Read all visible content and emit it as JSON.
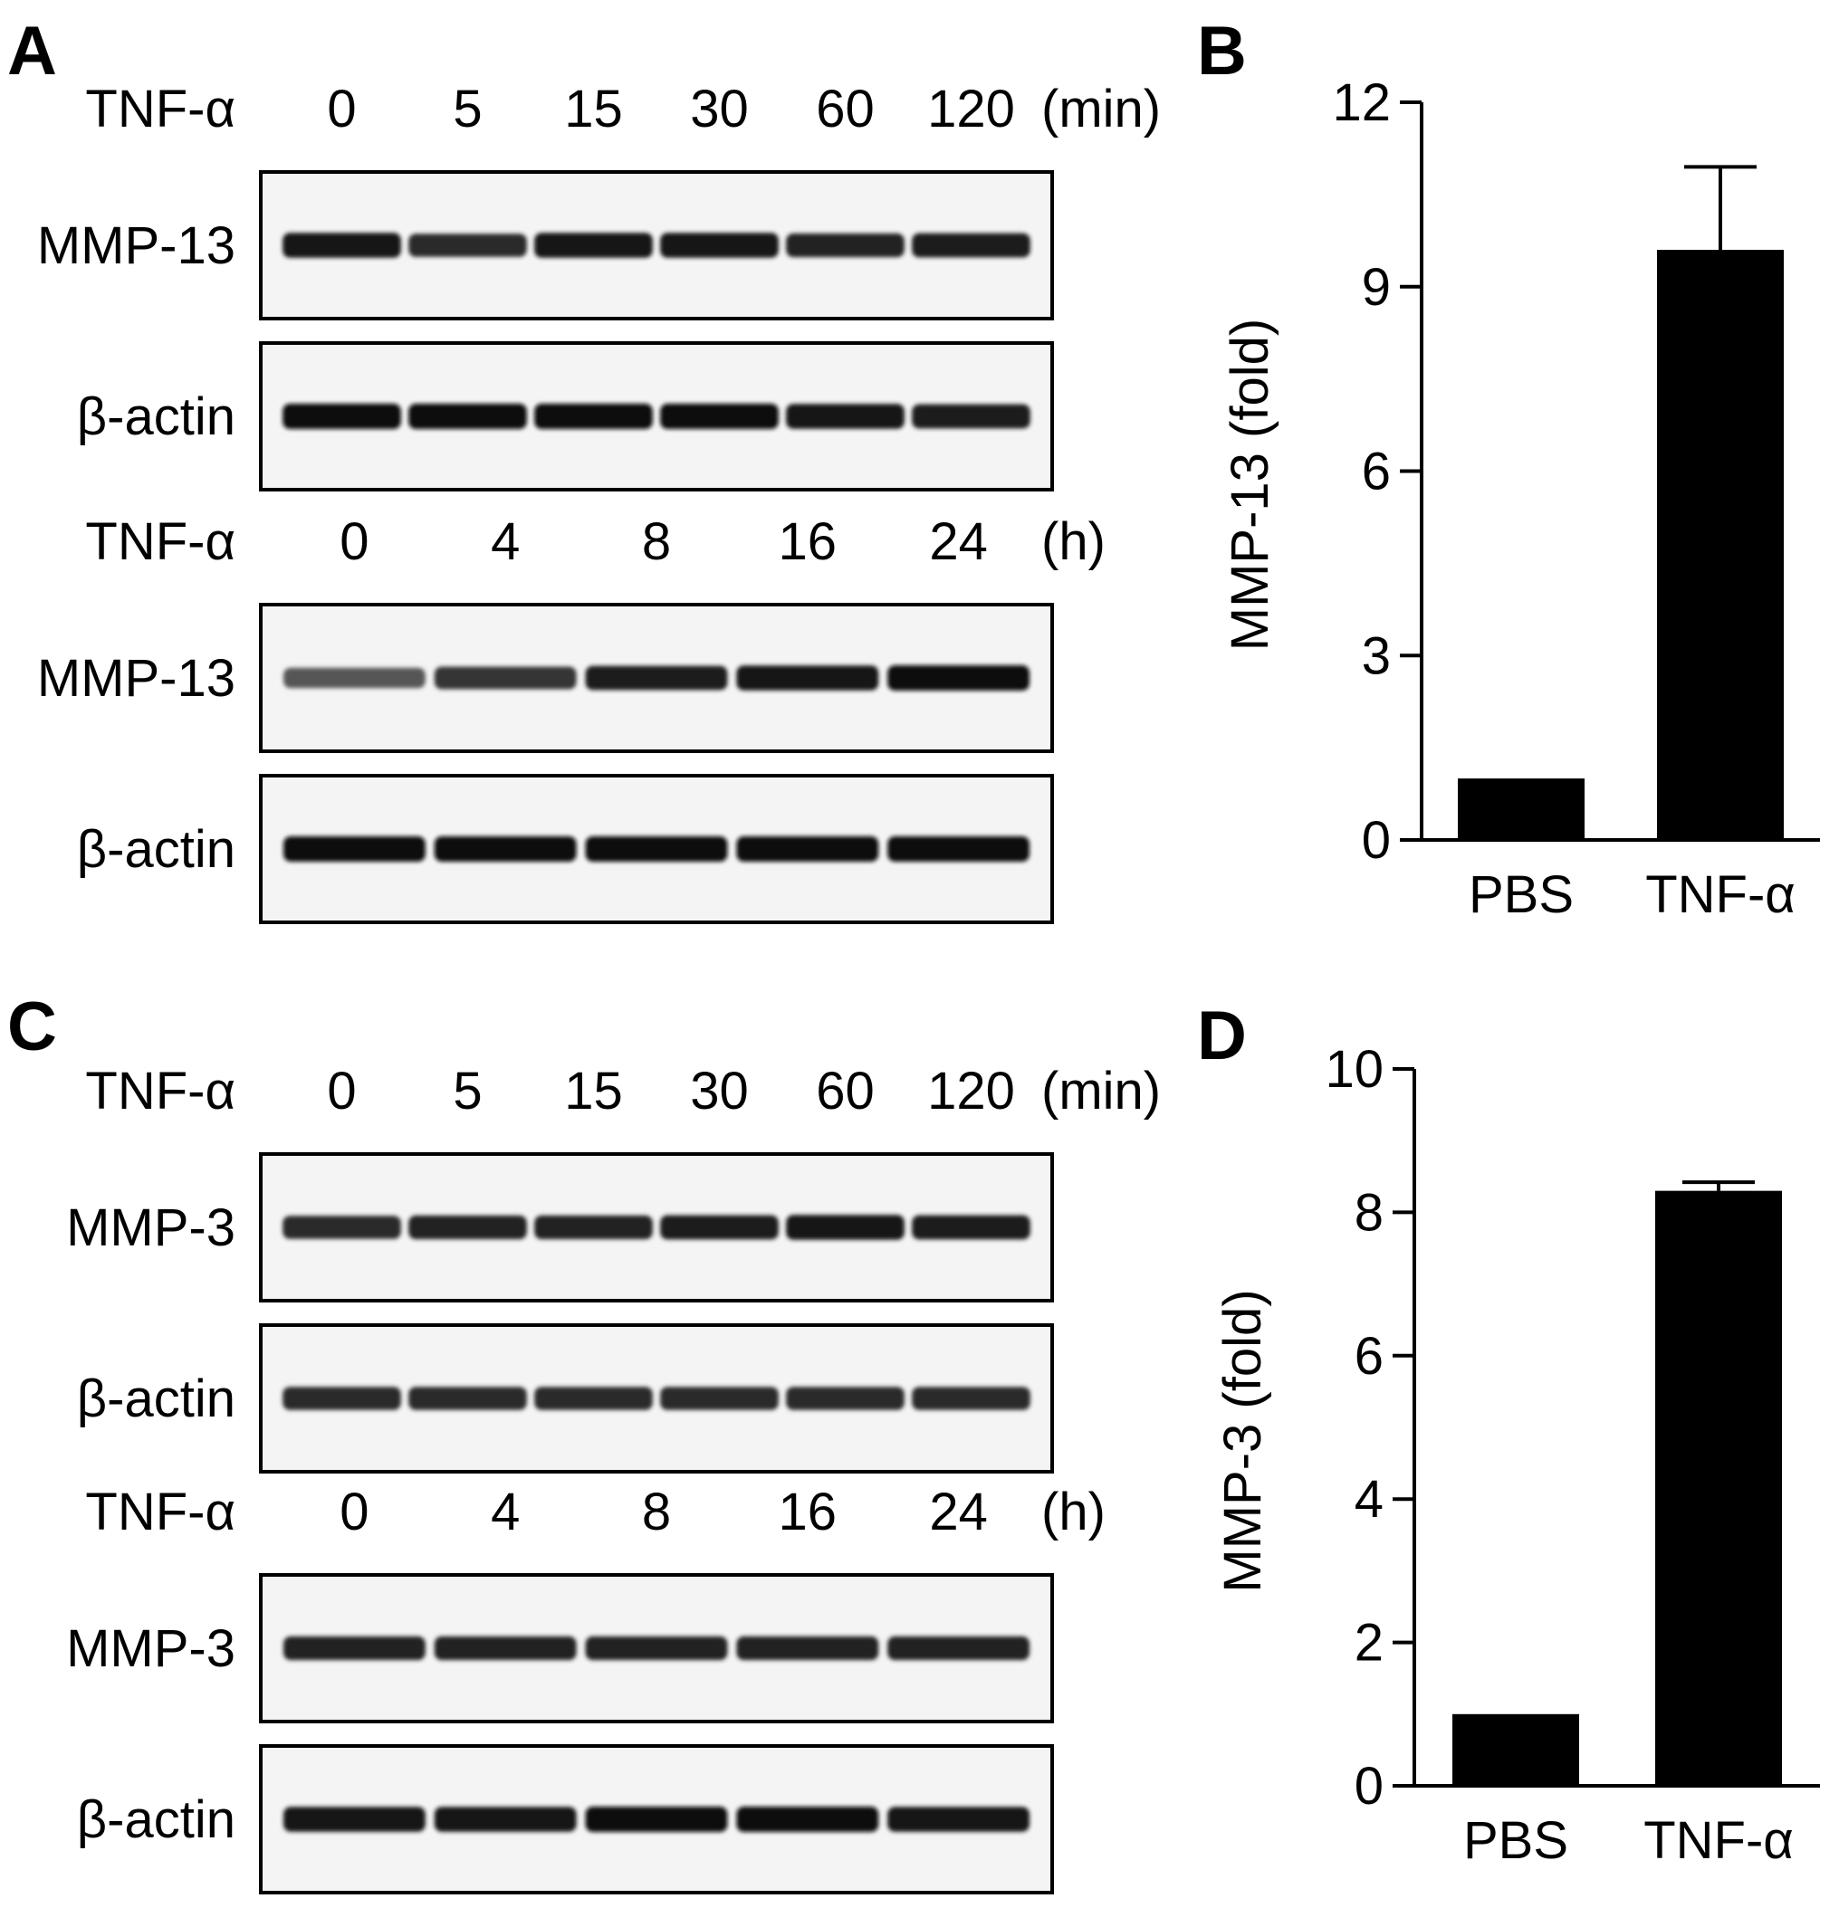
{
  "panels": [
    {
      "letter": "A",
      "kind": "western-blot",
      "groups": [
        {
          "treatment": "TNF-α",
          "unit": "(min)",
          "lanes": [
            "0",
            "5",
            "15",
            "30",
            "60",
            "120"
          ],
          "blots": [
            {
              "label": "MMP-13",
              "intensity": [
                0.95,
                0.8,
                0.95,
                0.95,
                0.85,
                0.9
              ]
            },
            {
              "label": "β-actin",
              "intensity": [
                1.0,
                1.0,
                1.0,
                1.0,
                0.95,
                0.9
              ]
            }
          ]
        },
        {
          "treatment": "TNF-α",
          "unit": "(h)",
          "lanes": [
            "0",
            "4",
            "8",
            "16",
            "24"
          ],
          "blots": [
            {
              "label": "MMP-13",
              "intensity": [
                0.55,
                0.75,
                0.9,
                0.95,
                1.0
              ]
            },
            {
              "label": "β-actin",
              "intensity": [
                1.0,
                1.0,
                1.0,
                1.0,
                1.0
              ]
            }
          ]
        }
      ]
    },
    {
      "letter": "C",
      "kind": "western-blot",
      "groups": [
        {
          "treatment": "TNF-α",
          "unit": "(min)",
          "lanes": [
            "0",
            "5",
            "15",
            "30",
            "60",
            "120"
          ],
          "blots": [
            {
              "label": "MMP-3",
              "intensity": [
                0.8,
                0.85,
                0.85,
                0.9,
                0.95,
                0.9
              ]
            },
            {
              "label": "β-actin",
              "intensity": [
                0.8,
                0.8,
                0.8,
                0.8,
                0.8,
                0.8
              ]
            }
          ]
        },
        {
          "treatment": "TNF-α",
          "unit": "(h)",
          "lanes": [
            "0",
            "4",
            "8",
            "16",
            "24"
          ],
          "blots": [
            {
              "label": "MMP-3",
              "intensity": [
                0.85,
                0.85,
                0.85,
                0.85,
                0.85
              ]
            },
            {
              "label": "β-actin",
              "intensity": [
                0.95,
                0.95,
                1.0,
                1.0,
                0.95
              ]
            }
          ]
        }
      ]
    }
  ],
  "chart_data": [
    {
      "panel": "B",
      "type": "bar",
      "categories": [
        "PBS",
        "TNF-α"
      ],
      "values": [
        1.0,
        9.6
      ],
      "errors": [
        0,
        1.35
      ],
      "ylabel": "MMP-13 (fold)",
      "ylim": [
        0,
        12
      ],
      "yticks": [
        0,
        3,
        6,
        9,
        12
      ],
      "bar_color": "#000000"
    },
    {
      "panel": "D",
      "type": "bar",
      "categories": [
        "PBS",
        "TNF-α"
      ],
      "values": [
        1.0,
        8.3
      ],
      "errors": [
        0,
        0.12
      ],
      "ylabel": "MMP-3 (fold)",
      "ylim": [
        0,
        10
      ],
      "yticks": [
        0,
        2,
        4,
        6,
        8,
        10
      ],
      "bar_color": "#000000"
    }
  ]
}
